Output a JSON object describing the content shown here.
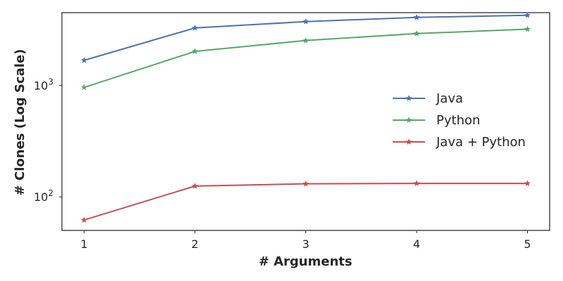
{
  "chart_data": {
    "type": "line",
    "title": "",
    "xlabel": "# Arguments",
    "ylabel": "# Clones (Log Scale)",
    "x": [
      1,
      2,
      3,
      4,
      5
    ],
    "x_ticks": [
      "1",
      "2",
      "3",
      "4",
      "5"
    ],
    "y_scale": "log",
    "y_ticks": [
      {
        "value": 1000,
        "base": "10",
        "exp": "3"
      },
      {
        "value": 100,
        "base": "10",
        "exp": "2"
      }
    ],
    "ylim": [
      50,
      4500
    ],
    "xlim": [
      0.8,
      5.2
    ],
    "grid": false,
    "legend_placement": "center-right",
    "series": [
      {
        "name": "Java",
        "color": "#4c72b0",
        "marker": "star",
        "values": [
          1680,
          3280,
          3740,
          4080,
          4260
        ]
      },
      {
        "name": "Python",
        "color": "#55a868",
        "marker": "star",
        "values": [
          960,
          2020,
          2530,
          2920,
          3200
        ]
      },
      {
        "name": "Java + Python",
        "color": "#c44e52",
        "marker": "star",
        "values": [
          62,
          125,
          131,
          132,
          132
        ]
      }
    ]
  }
}
